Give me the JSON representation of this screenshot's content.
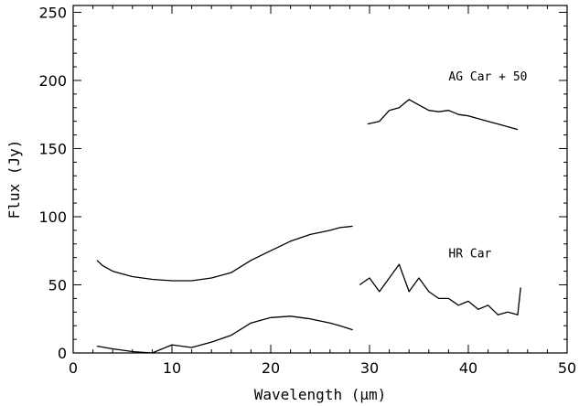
{
  "chart_data": {
    "type": "line",
    "xlabel": "Wavelength (μm)",
    "ylabel": "Flux (Jy)",
    "xlim": [
      0,
      50
    ],
    "ylim": [
      0,
      255
    ],
    "xticks": [
      0,
      10,
      20,
      30,
      40,
      50
    ],
    "yticks": [
      0,
      50,
      100,
      150,
      200,
      250
    ],
    "grid": false,
    "annotations": [
      {
        "text": "AG Car + 50",
        "x": 38,
        "y": 200
      },
      {
        "text": "HR Car",
        "x": 38,
        "y": 70
      }
    ],
    "series": [
      {
        "x": [
          2.4,
          3,
          4,
          5,
          6,
          8,
          10,
          12,
          14,
          16,
          18,
          20,
          22,
          24,
          26,
          27,
          28.3
        ],
        "y": [
          68,
          64,
          60,
          58,
          56,
          54,
          53,
          53,
          55,
          59,
          68,
          75,
          82,
          87,
          90,
          92,
          93
        ]
      },
      {
        "x": [
          2.4,
          4,
          6,
          8,
          10,
          12,
          14,
          16,
          18,
          20,
          22,
          24,
          26,
          27,
          28.3
        ],
        "y": [
          5,
          3,
          1,
          0,
          6,
          4,
          8,
          13,
          22,
          26,
          27,
          25,
          22,
          20,
          17
        ]
      },
      {
        "x": [
          29,
          30,
          31,
          32,
          33,
          34,
          35,
          36,
          37,
          38,
          39,
          40,
          41,
          42,
          43,
          44,
          45,
          45.3
        ],
        "y": [
          50,
          55,
          45,
          55,
          65,
          45,
          55,
          45,
          40,
          40,
          35,
          38,
          32,
          35,
          28,
          30,
          28,
          48
        ]
      },
      {
        "x": [
          29.8,
          31,
          32,
          33,
          34,
          35,
          36,
          37,
          38,
          39,
          40,
          41,
          42,
          43,
          44,
          45
        ],
        "y": [
          168,
          170,
          178,
          180,
          186,
          182,
          178,
          177,
          178,
          175,
          174,
          172,
          170,
          168,
          166,
          164
        ]
      }
    ]
  }
}
